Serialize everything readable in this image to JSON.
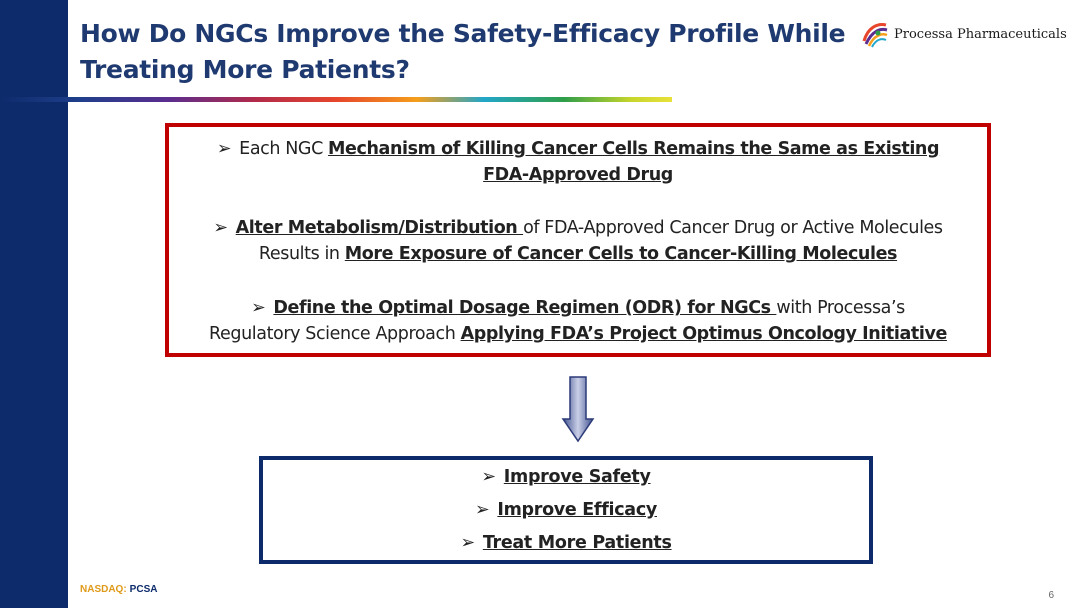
{
  "slide": {
    "title_line1": "How Do NGCs Improve the Safety-Efficacy Profile While",
    "title_line2": "Treating More Patients?",
    "logo_text": "Processa Pharmaceuticals",
    "page_number": "6"
  },
  "mechanism_box": {
    "bullet1": {
      "prefix": "Each NGC ",
      "emphasis_line1": "Mechanism of Killing Cancer Cells Remains the Same as Existing",
      "emphasis_line2": "FDA-Approved Drug"
    },
    "bullet2": {
      "emphasis1": "Alter Metabolism/Distribution ",
      "middle": "of FDA-Approved Cancer Drug or Active Molecules",
      "line2_prefix": "Results in ",
      "emphasis2": "More Exposure of Cancer Cells to Cancer-Killing Molecules"
    },
    "bullet3": {
      "emphasis1": "Define the Optimal Dosage Regimen (ODR) for NGCs ",
      "middle": "with Processa’s",
      "line2_prefix": "Regulatory Science Approach ",
      "emphasis2": "Applying FDA’s Project Optimus Oncology Initiative"
    }
  },
  "outcomes_box": {
    "items": [
      "Improve Safety",
      "Improve Efficacy",
      "Treat More Patients"
    ]
  },
  "footer": {
    "exchange": "NASDAQ:",
    "ticker": "PCSA"
  },
  "colors": {
    "sidebar": "#0d2b6b",
    "title": "#1f3a70",
    "red_border": "#c00000",
    "blue_border": "#0d2b6b",
    "footer_exchange": "#e09a1a"
  },
  "icons": {
    "bullet": "arrowhead-bullet-icon",
    "flow": "down-arrow-icon",
    "logo": "processa-logo-icon"
  }
}
